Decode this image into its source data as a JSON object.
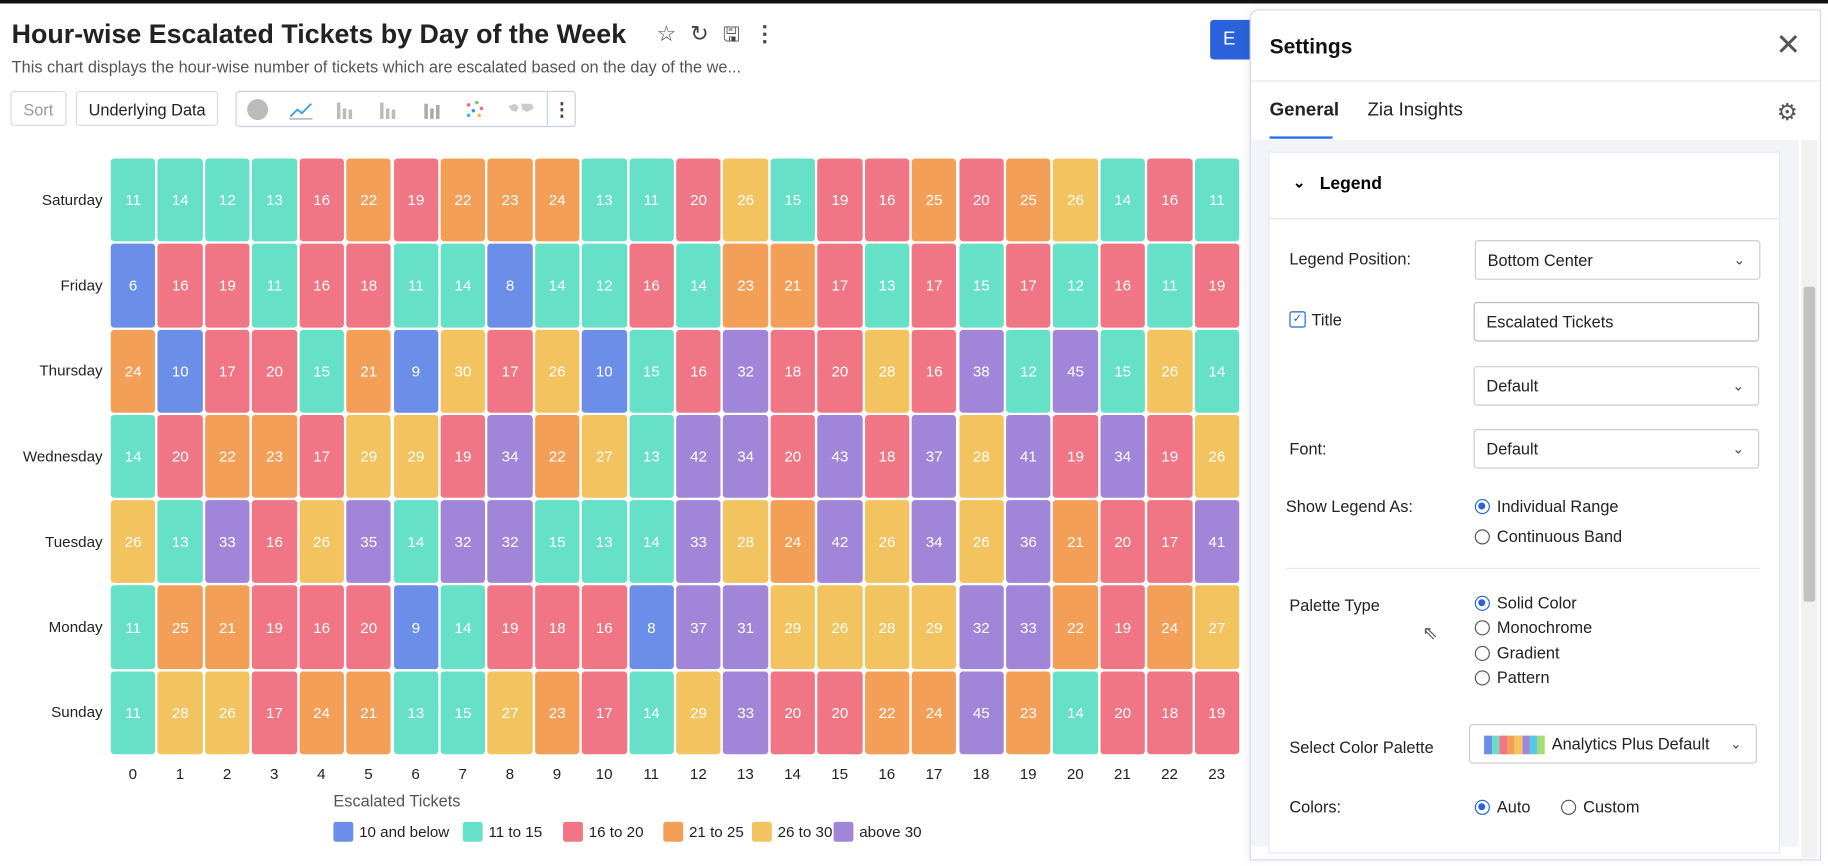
{
  "header": {
    "title": "Hour-wise Escalated Tickets by Day of the Week",
    "subtitle": "This chart displays the hour-wise number of tickets which are escalated based on the day of the we...",
    "icons": [
      "star-icon",
      "refresh-icon",
      "save-icon",
      "more-vertical-icon"
    ]
  },
  "toolbar": {
    "sort_label": "Sort",
    "underlying_label": "Underlying Data",
    "chart_types": [
      "pie-chart-icon",
      "line-chart-icon",
      "bar-chart-icon",
      "stacked-bar-icon",
      "column-chart-icon",
      "scatter-icon",
      "map-icon"
    ],
    "more_icon": "more-vertical-icon"
  },
  "edit_button": {
    "label": "E",
    "color": "#2b62d9"
  },
  "chart_data": {
    "type": "heatmap",
    "x": [
      "0",
      "1",
      "2",
      "3",
      "4",
      "5",
      "6",
      "7",
      "8",
      "9",
      "10",
      "11",
      "12",
      "13",
      "14",
      "15",
      "16",
      "17",
      "18",
      "19",
      "20",
      "21",
      "22",
      "23"
    ],
    "y": [
      "Saturday",
      "Friday",
      "Thursday",
      "Wednesday",
      "Tuesday",
      "Monday",
      "Sunday"
    ],
    "values": [
      [
        11,
        14,
        12,
        13,
        16,
        22,
        19,
        22,
        23,
        24,
        13,
        11,
        20,
        26,
        15,
        19,
        16,
        25,
        20,
        25,
        26,
        14,
        16,
        11
      ],
      [
        6,
        16,
        19,
        11,
        16,
        18,
        11,
        14,
        8,
        14,
        12,
        16,
        14,
        23,
        21,
        17,
        13,
        17,
        15,
        17,
        12,
        16,
        11,
        19
      ],
      [
        24,
        10,
        17,
        20,
        15,
        21,
        9,
        30,
        17,
        26,
        10,
        15,
        16,
        32,
        18,
        20,
        28,
        16,
        38,
        12,
        45,
        15,
        26,
        14
      ],
      [
        14,
        20,
        22,
        23,
        17,
        29,
        29,
        19,
        34,
        22,
        27,
        13,
        42,
        34,
        20,
        43,
        18,
        37,
        28,
        41,
        19,
        34,
        19,
        26
      ],
      [
        26,
        13,
        33,
        16,
        26,
        35,
        14,
        32,
        32,
        15,
        13,
        14,
        33,
        28,
        24,
        42,
        26,
        34,
        26,
        36,
        21,
        20,
        17,
        41
      ],
      [
        11,
        25,
        21,
        19,
        16,
        20,
        9,
        14,
        19,
        18,
        16,
        8,
        37,
        31,
        29,
        26,
        28,
        29,
        32,
        33,
        22,
        19,
        24,
        27
      ],
      [
        11,
        28,
        26,
        17,
        24,
        21,
        13,
        15,
        27,
        23,
        17,
        14,
        29,
        33,
        20,
        20,
        22,
        24,
        45,
        23,
        14,
        20,
        18,
        19
      ]
    ],
    "legend": {
      "title": "Escalated Tickets",
      "position": "bottom-center",
      "ranges": [
        {
          "label": "10 and below",
          "max": 10,
          "color": "#6b8ee8"
        },
        {
          "label": "11 to 15",
          "max": 15,
          "color": "#66e0c6"
        },
        {
          "label": "16 to 20",
          "max": 20,
          "color": "#f07585"
        },
        {
          "label": "21 to 25",
          "max": 25,
          "color": "#f49f58"
        },
        {
          "label": "26 to 30",
          "max": 30,
          "color": "#f2c35e"
        },
        {
          "label": "above 30",
          "max": 9999,
          "color": "#a185d8"
        }
      ]
    }
  },
  "settings": {
    "title": "Settings",
    "tabs": [
      "General",
      "Zia Insights"
    ],
    "active_tab": "General",
    "section": "Legend",
    "legend_position_label": "Legend Position:",
    "legend_position": "Bottom Center",
    "title_label": "Title",
    "title_checked": true,
    "title_value": "Escalated Tickets",
    "title_font": "Default",
    "font_label": "Font:",
    "font": "Default",
    "show_as_label": "Show Legend As:",
    "show_as_options": [
      "Individual Range",
      "Continuous Band"
    ],
    "show_as_selected": "Individual Range",
    "palette_type_label": "Palette Type",
    "palette_types": [
      "Solid Color",
      "Monochrome",
      "Gradient",
      "Pattern"
    ],
    "palette_type_selected": "Solid Color",
    "color_palette_label": "Select Color Palette",
    "color_palette": "Analytics Plus Default",
    "palette_swatches": [
      "#6b8ee8",
      "#66e0c6",
      "#f07585",
      "#f49f58",
      "#f2c35e",
      "#a185d8",
      "#5bc8e8",
      "#a6dc6e"
    ],
    "colors_label": "Colors:",
    "colors_options": [
      "Auto",
      "Custom"
    ],
    "colors_selected": "Auto"
  }
}
